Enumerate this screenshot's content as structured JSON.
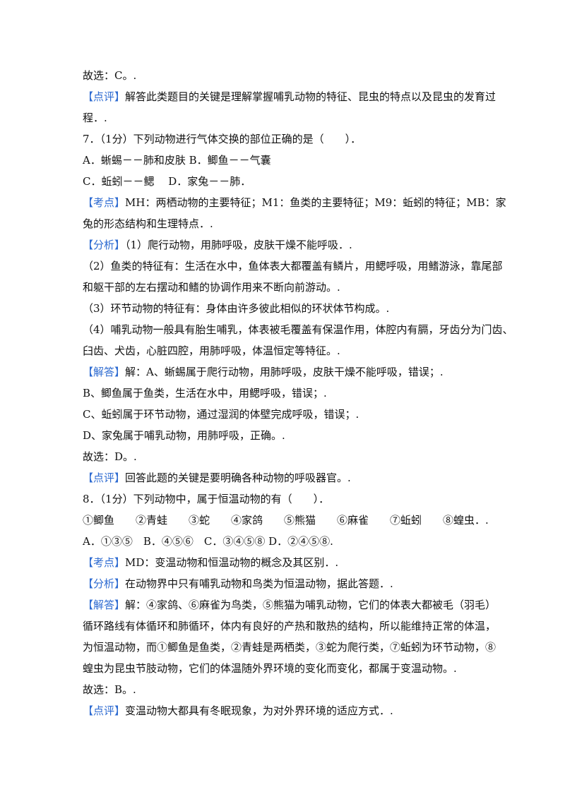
{
  "lines": [
    {
      "text": "故选：C。."
    },
    {
      "tag": "【点评】",
      "text": "解答此类题目的关键是理解掌握哺乳动物的特征、昆虫的特点以及昆虫的发育过"
    },
    {
      "text": "程．."
    },
    {
      "text": "7．（1分）下列动物进行气体交换的部位正确的是（　　）．"
    },
    {
      "text": "A．蜥蜴－－肺和皮肤 B．鲫鱼－－气囊"
    },
    {
      "text": "C．蚯蚓－－鳃　 D．家兔－－肺．"
    },
    {
      "tag": "【考点】",
      "text": "MH：两栖动物的主要特征；M1：鱼类的主要特征；M9：蚯蚓的特征；MB：家"
    },
    {
      "text": "兔的形态结构和生理特点．."
    },
    {
      "tag": "【分析】",
      "text": "（1）爬行动物，用肺呼吸，皮肤干燥不能呼吸．."
    },
    {
      "text": "（2）鱼类的特征有：生活在水中，鱼体表大都覆盖有鳞片，用鳃呼吸，用鳍游泳，靠尾部"
    },
    {
      "text": "和躯干部的左右摆动和鳍的协调作用来不断向前游动。."
    },
    {
      "text": "（3）环节动物的特征有：身体由许多彼此相似的环状体节构成。."
    },
    {
      "text": "（4）哺乳动物一般具有胎生哺乳，体表被毛覆盖有保温作用，体腔内有膈，牙齿分为门齿、"
    },
    {
      "text": "臼齿、犬齿，心脏四腔，用肺呼吸，体温恒定等特征。."
    },
    {
      "tag": "【解答】",
      "text": "解：A、蜥蜴属于爬行动物，用肺呼吸，皮肤干燥不能呼吸，错误；."
    },
    {
      "text": "B、鲫鱼属于鱼类，生活在水中，用鳃呼吸，错误；."
    },
    {
      "text": "C、蚯蚓属于环节动物，通过湿润的体壁完成呼吸，错误；."
    },
    {
      "text": "D、家兔属于哺乳动物，用肺呼吸，正确。."
    },
    {
      "text": "故选：D。."
    },
    {
      "tag": "【点评】",
      "text": "回答此题的关键是要明确各种动物的呼吸器官。."
    },
    {
      "text": "8．（1分）下列动物中，属于恒温动物的有（　　）．"
    },
    {
      "text": "①鲫鱼　　②青蛙　　③蛇　　④家鸽　　⑤熊猫　　⑥麻雀　　⑦蚯蚓　　⑧蝗虫．."
    },
    {
      "text": "A．①③⑤　B．④⑤⑥　C．③④⑤⑧ D．②④⑤⑧."
    },
    {
      "tag": "【考点】",
      "text": "MD：变温动物和恒温动物的概念及其区别．."
    },
    {
      "tag": "【分析】",
      "text": "在动物界中只有哺乳动物和鸟类为恒温动物，据此答题．."
    },
    {
      "tag": "【解答】",
      "text": "解：④家鸽、⑥麻雀为鸟类，⑤熊猫为哺乳动物，它们的体表大都被毛（羽毛）"
    },
    {
      "text": "循环路线有体循环和肺循环，体内有良好的产热和散热的结构，所以能维持正常的体温，"
    },
    {
      "text": "为恒温动物，而①鲫鱼是鱼类，②青蛙是两栖类，③蛇为爬行类，⑦蚯蚓为环节动物，⑧"
    },
    {
      "text": "蝗虫为昆虫节肢动物，它们的体温随外界环境的变化而变化，都属于变温动物。."
    },
    {
      "text": "故选：B。."
    },
    {
      "tag": "【点评】",
      "text": "变温动物大都具有冬眠现象，为对外界环境的适应方式．."
    }
  ]
}
